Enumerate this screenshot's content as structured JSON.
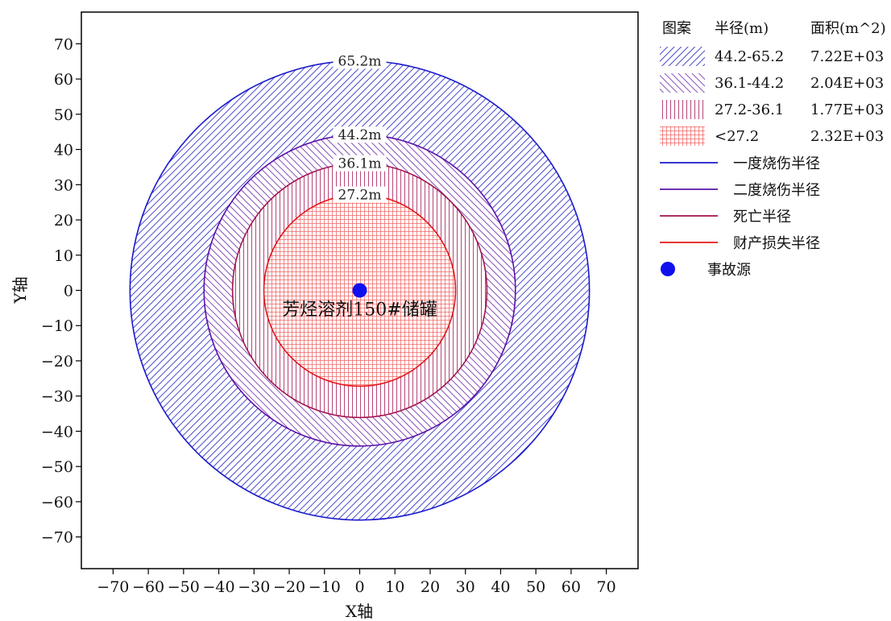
{
  "chart_data": {
    "type": "scatter",
    "xlabel": "X轴",
    "ylabel": "Y轴",
    "xlim": [
      -79,
      79
    ],
    "ylim": [
      -79,
      79
    ],
    "xticks": [
      -70,
      -60,
      -50,
      -40,
      -30,
      -20,
      -10,
      0,
      10,
      20,
      30,
      40,
      50,
      60,
      70
    ],
    "yticks": [
      70,
      60,
      50,
      40,
      30,
      20,
      10,
      0,
      -10,
      -20,
      -30,
      -40,
      -50,
      -60,
      -70
    ],
    "grid": false,
    "legend_position": "right",
    "source": {
      "x": 0,
      "y": 0,
      "label": "芳烃溶剂150#储罐",
      "color": "#1010ee"
    },
    "zones": [
      {
        "id": "burn1",
        "radius": 65.2,
        "label": "65.2m",
        "color": "#1a1acc",
        "fill": "hatch-blue"
      },
      {
        "id": "burn2",
        "radius": 44.2,
        "label": "44.2m",
        "color": "#5a12a8",
        "fill": "hatch-purple"
      },
      {
        "id": "death",
        "radius": 36.1,
        "label": "36.1m",
        "color": "#a3124e",
        "fill": "hatch-vert"
      },
      {
        "id": "property",
        "radius": 27.2,
        "label": "27.2m",
        "color": "#e01818",
        "fill": "hatch-grid"
      }
    ]
  },
  "legend": {
    "header": {
      "pattern": "图案",
      "radius": "半径(m)",
      "area": "面积(m^2)"
    },
    "rows": [
      {
        "pattern": "hatch-blue",
        "radius": "44.2-65.2",
        "area": "7.22E+03"
      },
      {
        "pattern": "hatch-purple",
        "radius": "36.1-44.2",
        "area": "2.04E+03"
      },
      {
        "pattern": "hatch-vert",
        "radius": "27.2-36.1",
        "area": "1.77E+03"
      },
      {
        "pattern": "hatch-grid",
        "radius": "<27.2",
        "area": "2.32E+03"
      }
    ],
    "lines": [
      {
        "label": "一度烧伤半径",
        "color": "#1a1acc"
      },
      {
        "label": "二度烧伤半径",
        "color": "#5a12a8"
      },
      {
        "label": "死亡半径",
        "color": "#a3124e"
      },
      {
        "label": "财产损失半径",
        "color": "#e01818"
      }
    ],
    "marker": {
      "label": "事故源",
      "color": "#1010ee"
    }
  }
}
